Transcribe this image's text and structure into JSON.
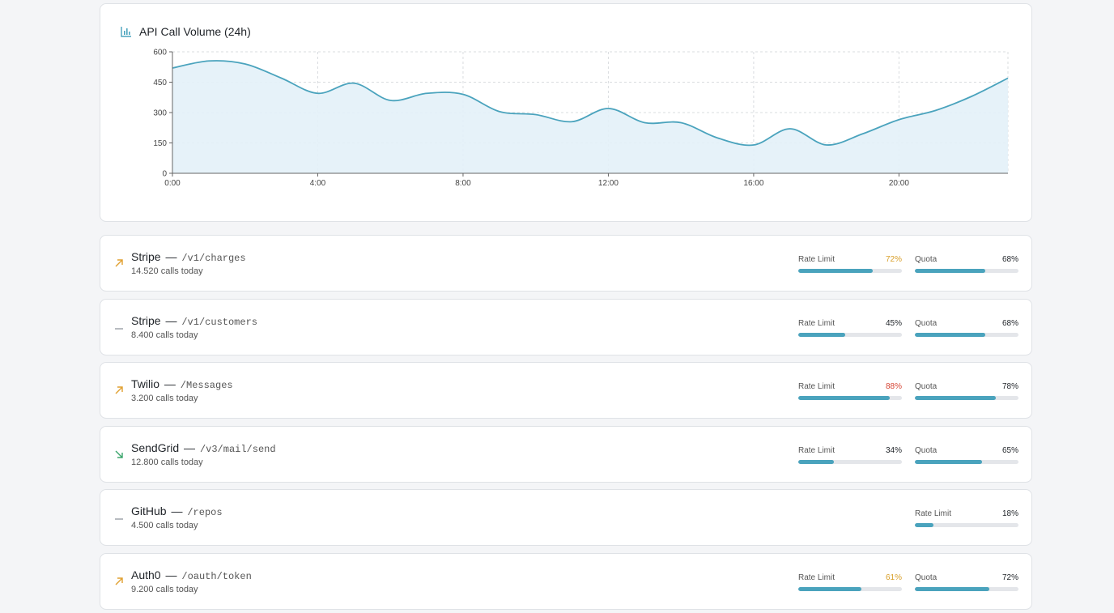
{
  "chart_card": {
    "title": "API Call Volume (24h)",
    "icon": "bar-chart-icon"
  },
  "chart_data": {
    "type": "area",
    "title": "API Call Volume (24h)",
    "x": [
      0,
      1,
      2,
      3,
      4,
      5,
      6,
      7,
      8,
      9,
      10,
      11,
      12,
      13,
      14,
      15,
      16,
      17,
      18,
      19,
      20,
      21,
      22,
      23
    ],
    "values": [
      520,
      555,
      540,
      470,
      395,
      445,
      360,
      395,
      390,
      305,
      290,
      255,
      320,
      250,
      250,
      175,
      140,
      220,
      140,
      195,
      265,
      310,
      380,
      470
    ],
    "x_tick_labels": [
      "0:00",
      "4:00",
      "8:00",
      "12:00",
      "16:00",
      "20:00"
    ],
    "x_ticks": [
      0,
      4,
      8,
      12,
      16,
      20
    ],
    "y_ticks": [
      0,
      150,
      300,
      450,
      600
    ],
    "ylim": [
      0,
      600
    ],
    "xlim": [
      0,
      23
    ],
    "grid": true,
    "line_color": "#4aa3bd",
    "fill_color": "#e3f1f8"
  },
  "apis": [
    {
      "trend": "up",
      "name": "Stripe",
      "separator": "—",
      "path": "/v1/charges",
      "calls": "14.520 calls today",
      "meters": [
        {
          "label": "Rate Limit",
          "value": 72,
          "display": "72%",
          "color": "#d9a02b"
        },
        {
          "label": "Quota",
          "value": 68,
          "display": "68%",
          "color": "#1f2328"
        }
      ]
    },
    {
      "trend": "flat",
      "name": "Stripe",
      "separator": "—",
      "path": "/v1/customers",
      "calls": "8.400 calls today",
      "meters": [
        {
          "label": "Rate Limit",
          "value": 45,
          "display": "45%",
          "color": "#1f2328"
        },
        {
          "label": "Quota",
          "value": 68,
          "display": "68%",
          "color": "#1f2328"
        }
      ]
    },
    {
      "trend": "up",
      "name": "Twilio",
      "separator": "—",
      "path": "/Messages",
      "calls": "3.200 calls today",
      "meters": [
        {
          "label": "Rate Limit",
          "value": 88,
          "display": "88%",
          "color": "#d64534"
        },
        {
          "label": "Quota",
          "value": 78,
          "display": "78%",
          "color": "#1f2328"
        }
      ]
    },
    {
      "trend": "down",
      "name": "SendGrid",
      "separator": "—",
      "path": "/v3/mail/send",
      "calls": "12.800 calls today",
      "meters": [
        {
          "label": "Rate Limit",
          "value": 34,
          "display": "34%",
          "color": "#1f2328"
        },
        {
          "label": "Quota",
          "value": 65,
          "display": "65%",
          "color": "#1f2328"
        }
      ]
    },
    {
      "trend": "flat",
      "name": "GitHub",
      "separator": "—",
      "path": "/repos",
      "calls": "4.500 calls today",
      "meters": [
        {
          "label": "Rate Limit",
          "value": 18,
          "display": "18%",
          "color": "#1f2328"
        }
      ]
    },
    {
      "trend": "up",
      "name": "Auth0",
      "separator": "—",
      "path": "/oauth/token",
      "calls": "9.200 calls today",
      "meters": [
        {
          "label": "Rate Limit",
          "value": 61,
          "display": "61%",
          "color": "#d9a02b"
        },
        {
          "label": "Quota",
          "value": 72,
          "display": "72%",
          "color": "#1f2328"
        }
      ]
    }
  ],
  "trend_colors": {
    "up": "#e0a030",
    "down": "#3aa56b",
    "flat": "#9aa0a6"
  }
}
